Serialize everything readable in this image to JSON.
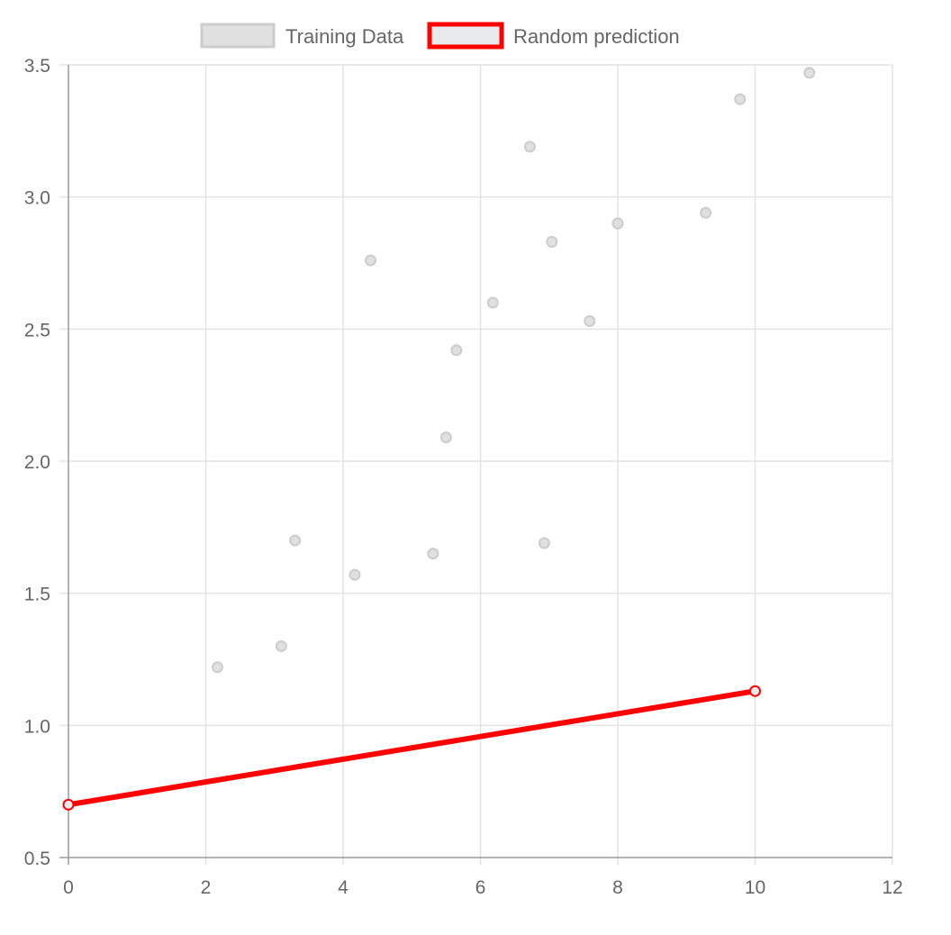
{
  "chart_data": {
    "type": "scatter",
    "legend_position": "top",
    "grid": true,
    "xlim": [
      0,
      12
    ],
    "ylim": [
      0.5,
      3.5
    ],
    "x_ticks": [
      0,
      2,
      4,
      6,
      8,
      10,
      12
    ],
    "y_ticks": [
      0.5,
      1.0,
      1.5,
      2.0,
      2.5,
      3.0,
      3.5
    ],
    "x_tick_labels": [
      "0",
      "2",
      "4",
      "6",
      "8",
      "10",
      "12"
    ],
    "y_tick_labels": [
      "0.5",
      "1.0",
      "1.5",
      "2.0",
      "2.5",
      "3.0",
      "3.5"
    ],
    "series": [
      {
        "name": "Training Data",
        "kind": "scatter",
        "color": "#e0e0e0",
        "border_color": "#cccccc",
        "points": [
          {
            "x": 2.17,
            "y": 1.22
          },
          {
            "x": 3.1,
            "y": 1.3
          },
          {
            "x": 3.3,
            "y": 1.7
          },
          {
            "x": 4.17,
            "y": 1.57
          },
          {
            "x": 4.4,
            "y": 2.76
          },
          {
            "x": 5.31,
            "y": 1.65
          },
          {
            "x": 5.5,
            "y": 2.09
          },
          {
            "x": 5.65,
            "y": 2.42
          },
          {
            "x": 6.18,
            "y": 2.6
          },
          {
            "x": 6.72,
            "y": 3.19
          },
          {
            "x": 6.93,
            "y": 1.69
          },
          {
            "x": 7.04,
            "y": 2.83
          },
          {
            "x": 7.59,
            "y": 2.53
          },
          {
            "x": 8.0,
            "y": 2.9
          },
          {
            "x": 9.28,
            "y": 2.94
          },
          {
            "x": 9.78,
            "y": 3.37
          },
          {
            "x": 10.79,
            "y": 3.47
          }
        ]
      },
      {
        "name": "Random prediction",
        "kind": "line",
        "color": "#e8eaeb",
        "border_color": "#ff0000",
        "points": [
          {
            "x": 0,
            "y": 0.7
          },
          {
            "x": 10,
            "y": 1.13
          }
        ]
      }
    ]
  }
}
